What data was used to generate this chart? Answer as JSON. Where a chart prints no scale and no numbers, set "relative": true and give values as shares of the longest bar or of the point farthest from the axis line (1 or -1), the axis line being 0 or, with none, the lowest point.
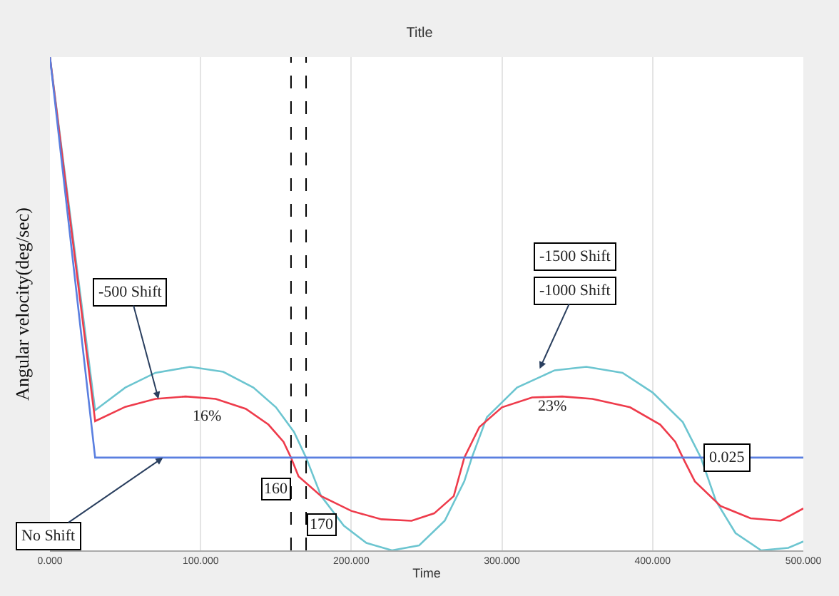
{
  "chart_data": {
    "type": "line",
    "title": "Title",
    "xlabel": "Time",
    "ylabel": "Angular velocity(deg/sec)",
    "relative": true,
    "grid": "x",
    "marker": "none",
    "line_style": "solid",
    "xlim": [
      0,
      500
    ],
    "xticks": [
      {
        "value": 0,
        "label": "0.000"
      },
      {
        "value": 100,
        "label": "100.000"
      },
      {
        "value": 200,
        "label": "200.000"
      },
      {
        "value": 300,
        "label": "300.000"
      },
      {
        "value": 400,
        "label": "400.000"
      },
      {
        "value": 500,
        "label": "500.000"
      }
    ],
    "series": [
      {
        "color": "#6cc5d0",
        "x": [
          0,
          30,
          50,
          70,
          93,
          115,
          135,
          150,
          162,
          170,
          180,
          195,
          210,
          227,
          245,
          262,
          275,
          280,
          290,
          310,
          335,
          356,
          380,
          400,
          420,
          432,
          442,
          455,
          472,
          490,
          500
        ],
        "values": [
          1,
          0.284,
          0.33,
          0.36,
          0.372,
          0.362,
          0.33,
          0.29,
          0.24,
          0.188,
          0.11,
          0.05,
          0.015,
          0,
          0.01,
          0.06,
          0.14,
          0.188,
          0.27,
          0.33,
          0.365,
          0.372,
          0.36,
          0.32,
          0.26,
          0.188,
          0.1,
          0.035,
          0,
          0.005,
          0.018
        ]
      },
      {
        "color": "#ee3b4b",
        "x": [
          0,
          30,
          50,
          70,
          90,
          110,
          130,
          145,
          155,
          160,
          165,
          180,
          200,
          220,
          240,
          255,
          268,
          275,
          285,
          300,
          320,
          340,
          360,
          385,
          405,
          415,
          420,
          428,
          445,
          465,
          485,
          500
        ],
        "values": [
          1,
          0.262,
          0.291,
          0.307,
          0.312,
          0.307,
          0.287,
          0.255,
          0.22,
          0.188,
          0.15,
          0.11,
          0.08,
          0.063,
          0.06,
          0.075,
          0.11,
          0.188,
          0.25,
          0.29,
          0.31,
          0.312,
          0.307,
          0.29,
          0.255,
          0.22,
          0.188,
          0.14,
          0.09,
          0.065,
          0.06,
          0.085
        ]
      },
      {
        "color": "#5a7fe0",
        "x": [
          0,
          30,
          500
        ],
        "values": [
          1,
          0.188,
          0.188
        ]
      }
    ],
    "ref_lines": [
      {
        "axis": "x",
        "value": 160,
        "label": "160",
        "line_style": "dashed",
        "color": "#000000"
      },
      {
        "axis": "x",
        "value": 170,
        "label": "170",
        "line_style": "dashed",
        "color": "#000000"
      }
    ],
    "annotations": [
      {
        "text": "-500 Shift",
        "x": 72,
        "y": 0.307
      },
      {
        "text": "No Shift",
        "x": 75,
        "y": 0.188
      },
      "16%",
      {
        "text": "-1000 Shift",
        "x": 325,
        "y": 0.368
      },
      "-1500 Shift",
      "23%",
      {
        "text": "0.025",
        "x": 470,
        "y": 0.188
      }
    ]
  }
}
